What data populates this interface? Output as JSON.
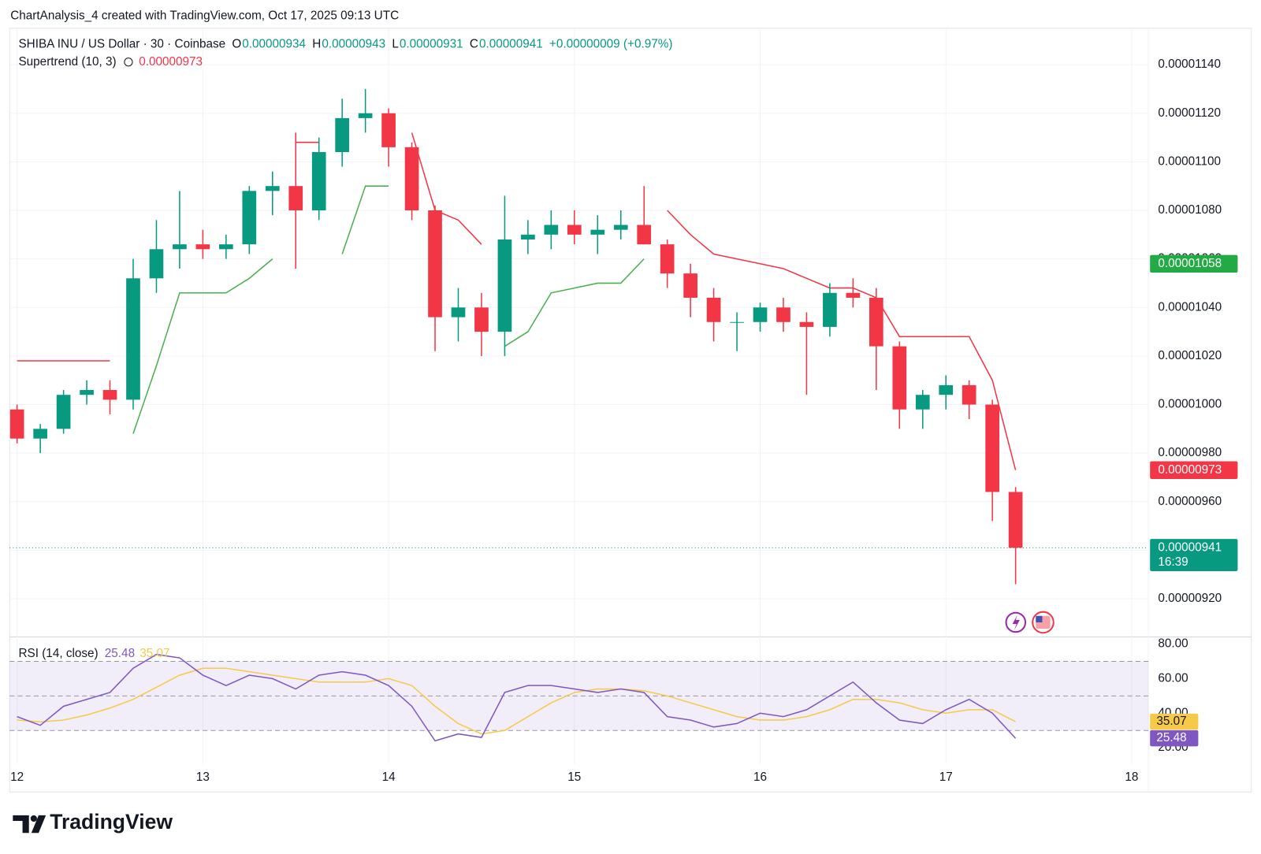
{
  "chart_data": {
    "type": "candlestick",
    "title": "ChartAnalysis_4 created with TradingView.com, Oct 17, 2025 09:13 UTC",
    "legend": {
      "symbol": "SHIBA INU / US Dollar · 30 · Coinbase",
      "ohlc": [
        {
          "label": "O",
          "value": "0.00000934"
        },
        {
          "label": "H",
          "value": "0.00000943"
        },
        {
          "label": "L",
          "value": "0.00000931"
        },
        {
          "label": "C",
          "value": "0.00000941"
        }
      ],
      "change": "+0.00000009 (+0.97%)"
    },
    "up_color": "#089981",
    "down_color": "#f23645",
    "x": [
      12,
      12.125,
      12.25,
      12.375,
      12.5,
      12.625,
      12.75,
      12.875,
      13,
      13.125,
      13.25,
      13.375,
      13.5,
      13.625,
      13.75,
      13.875,
      14,
      14.125,
      14.25,
      14.375,
      14.5,
      14.625,
      14.75,
      14.875,
      15,
      15.125,
      15.25,
      15.375,
      15.5,
      15.625,
      15.75,
      15.875,
      16,
      16.125,
      16.25,
      16.375,
      16.5,
      16.625,
      16.75,
      16.875,
      17,
      17.125,
      17.25,
      17.375
    ],
    "open": [
      9.98e-06,
      9.86e-06,
      9.9e-06,
      1.004e-05,
      1.006e-05,
      1.002e-05,
      1.052e-05,
      1.064e-05,
      1.066e-05,
      1.064e-05,
      1.066e-05,
      1.088e-05,
      1.09e-05,
      1.08e-05,
      1.104e-05,
      1.118e-05,
      1.12e-05,
      1.106e-05,
      1.08e-05,
      1.036e-05,
      1.04e-05,
      1.03e-05,
      1.068e-05,
      1.07e-05,
      1.074e-05,
      1.07e-05,
      1.072e-05,
      1.074e-05,
      1.066e-05,
      1.054e-05,
      1.044e-05,
      1.034e-05,
      1.034e-05,
      1.04e-05,
      1.034e-05,
      1.032e-05,
      1.046e-05,
      1.044e-05,
      1.024e-05,
      9.98e-06,
      1.004e-05,
      1.008e-05,
      1e-05,
      9.64e-06
    ],
    "high": [
      1e-05,
      9.92e-06,
      1.006e-05,
      1.01e-05,
      1.01e-05,
      1.06e-05,
      1.076e-05,
      1.088e-05,
      1.072e-05,
      1.07e-05,
      1.09e-05,
      1.096e-05,
      1.112e-05,
      1.11e-05,
      1.126e-05,
      1.13e-05,
      1.122e-05,
      1.108e-05,
      1.082e-05,
      1.048e-05,
      1.046e-05,
      1.086e-05,
      1.076e-05,
      1.08e-05,
      1.08e-05,
      1.078e-05,
      1.08e-05,
      1.09e-05,
      1.068e-05,
      1.058e-05,
      1.048e-05,
      1.038e-05,
      1.042e-05,
      1.044e-05,
      1.038e-05,
      1.05e-05,
      1.052e-05,
      1.048e-05,
      1.026e-05,
      1.006e-05,
      1.012e-05,
      1.01e-05,
      1.002e-05,
      9.66e-06
    ],
    "low": [
      9.84e-06,
      9.8e-06,
      9.88e-06,
      1e-05,
      9.96e-06,
      9.98e-06,
      1.046e-05,
      1.056e-05,
      1.06e-05,
      1.06e-05,
      1.062e-05,
      1.078e-05,
      1.056e-05,
      1.076e-05,
      1.098e-05,
      1.112e-05,
      1.098e-05,
      1.076e-05,
      1.022e-05,
      1.026e-05,
      1.02e-05,
      1.02e-05,
      1.062e-05,
      1.064e-05,
      1.066e-05,
      1.062e-05,
      1.068e-05,
      1.066e-05,
      1.048e-05,
      1.036e-05,
      1.026e-05,
      1.022e-05,
      1.03e-05,
      1.03e-05,
      1.004e-05,
      1.028e-05,
      1.04e-05,
      1.006e-05,
      9.9e-06,
      9.9e-06,
      9.98e-06,
      9.94e-06,
      9.52e-06,
      9.26e-06
    ],
    "close": [
      9.86e-06,
      9.9e-06,
      1.004e-05,
      1.006e-05,
      1.002e-05,
      1.052e-05,
      1.064e-05,
      1.066e-05,
      1.064e-05,
      1.066e-05,
      1.088e-05,
      1.09e-05,
      1.08e-05,
      1.104e-05,
      1.118e-05,
      1.12e-05,
      1.106e-05,
      1.08e-05,
      1.036e-05,
      1.04e-05,
      1.03e-05,
      1.068e-05,
      1.07e-05,
      1.074e-05,
      1.07e-05,
      1.072e-05,
      1.074e-05,
      1.066e-05,
      1.054e-05,
      1.044e-05,
      1.034e-05,
      1.034e-05,
      1.04e-05,
      1.034e-05,
      1.032e-05,
      1.046e-05,
      1.044e-05,
      1.024e-05,
      9.98e-06,
      1.004e-05,
      1.008e-05,
      1e-05,
      9.64e-06,
      9.41e-06
    ],
    "supertrend": {
      "label": "Supertrend (10, 3)",
      "value_label": "0.00000973",
      "up": {
        "color": "#4caf50",
        "values": [
          null,
          null,
          null,
          null,
          null,
          9.88e-06,
          1.016e-05,
          1.046e-05,
          1.046e-05,
          1.046e-05,
          1.052e-05,
          1.06e-05,
          null,
          null,
          1.062e-05,
          1.09e-05,
          1.09e-05,
          null,
          null,
          null,
          null,
          1.024e-05,
          1.03e-05,
          1.046e-05,
          1.048e-05,
          1.05e-05,
          1.05e-05,
          1.06e-05,
          null,
          null,
          null,
          null,
          null,
          null,
          null,
          null,
          null,
          null,
          null,
          null,
          null,
          null,
          null,
          null
        ]
      },
      "down": {
        "color": "#f23645",
        "values": [
          1.018e-05,
          1.018e-05,
          1.018e-05,
          1.018e-05,
          1.018e-05,
          null,
          null,
          null,
          null,
          null,
          null,
          null,
          1.108e-05,
          1.108e-05,
          null,
          null,
          null,
          1.112e-05,
          1.08e-05,
          1.076e-05,
          1.066e-05,
          null,
          null,
          null,
          null,
          null,
          null,
          null,
          1.08e-05,
          1.07e-05,
          1.062e-05,
          1.06e-05,
          1.058e-05,
          1.056e-05,
          1.052e-05,
          1.048e-05,
          1.048e-05,
          1.044e-05,
          1.028e-05,
          1.028e-05,
          1.028e-05,
          1.028e-05,
          1.01e-05,
          9.73e-06
        ]
      }
    },
    "xlim": [
      11.96,
      18.09
    ],
    "xticks": [
      12,
      13,
      14,
      15,
      16,
      17,
      18
    ],
    "ylim": [
      9.05e-06,
      1.155e-05
    ],
    "yticks": [
      {
        "value": 9.2e-06,
        "label": "0.00000920"
      },
      {
        "value": 9.4e-06,
        "label": "0.00000940"
      },
      {
        "value": 9.6e-06,
        "label": "0.00000960"
      },
      {
        "value": 9.8e-06,
        "label": "0.00000980"
      },
      {
        "value": 1e-05,
        "label": "0.00001000"
      },
      {
        "value": 1.02e-05,
        "label": "0.00001020"
      },
      {
        "value": 1.04e-05,
        "label": "0.00001040"
      },
      {
        "value": 1.06e-05,
        "label": "0.00001060"
      },
      {
        "value": 1.08e-05,
        "label": "0.00001080"
      },
      {
        "value": 1.1e-05,
        "label": "0.00001100"
      },
      {
        "value": 1.12e-05,
        "label": "0.00001120"
      },
      {
        "value": 1.14e-05,
        "label": "0.00001140"
      }
    ],
    "grid": true,
    "price_tags": [
      {
        "value": 1.058e-05,
        "label": "0.00001058",
        "color": "#22ab44"
      },
      {
        "value": 9.73e-06,
        "label": "0.00000973",
        "color": "#f23645"
      },
      {
        "value": 9.41e-06,
        "label": "0.00000941",
        "sub": "16:39",
        "color": "#089981"
      }
    ],
    "rsi": {
      "label": "RSI (14, close)",
      "value_label": "25.48",
      "ma_label": "35.07",
      "line_color": "#7e57c2",
      "ma_color": "#f7c948",
      "values": [
        38,
        33,
        44,
        48,
        52,
        66,
        74,
        72,
        62,
        56,
        62,
        60,
        54,
        62,
        64,
        62,
        56,
        44,
        24,
        28,
        26,
        52,
        56,
        56,
        54,
        52,
        54,
        52,
        38,
        36,
        32,
        34,
        40,
        38,
        42,
        50,
        58,
        46,
        36,
        34,
        42,
        48,
        40,
        25.48
      ],
      "ma": [
        36,
        35,
        36,
        39,
        43,
        48,
        55,
        62,
        66,
        66,
        64,
        62,
        60,
        58,
        58,
        58,
        60,
        56,
        44,
        34,
        28,
        30,
        38,
        46,
        52,
        54,
        54,
        53,
        50,
        46,
        42,
        38,
        36,
        36,
        38,
        42,
        48,
        48,
        46,
        42,
        40,
        42,
        42,
        35.07
      ],
      "ylim": [
        10.7,
        82.8
      ],
      "yticks": [
        {
          "value": 20,
          "label": "20.00"
        },
        {
          "value": 40,
          "label": "40.00"
        },
        {
          "value": 60,
          "label": "60.00"
        },
        {
          "value": 80,
          "label": "80.00"
        }
      ],
      "bands": [
        30,
        50,
        70
      ]
    },
    "brand": "TradingView"
  }
}
